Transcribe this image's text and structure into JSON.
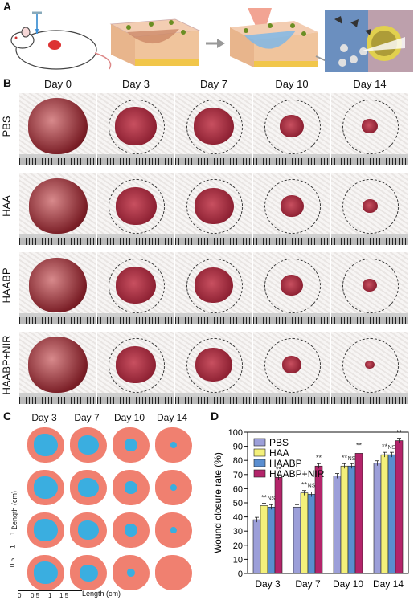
{
  "panels": {
    "a": "A",
    "b": "B",
    "c": "C",
    "d": "D"
  },
  "days": [
    "Day 0",
    "Day 3",
    "Day 7",
    "Day 10",
    "Day 14"
  ],
  "groups": [
    "PBS",
    "HAA",
    "HAABP",
    "HAABP+NIR"
  ],
  "trace_days": [
    "Day 3",
    "Day 7",
    "Day 10",
    "Day 14"
  ],
  "scale_length_label": "Length (cm)",
  "scale_ticks": [
    "0",
    "0.5",
    "1",
    "1.5"
  ],
  "colors": {
    "skin_area": "#f08070",
    "wound_area": "#3aaee0",
    "pbs": "#9c9fd9",
    "haa": "#f3f07a",
    "haabp": "#5a8ed0",
    "haabp_nir": "#b3246a"
  },
  "chart_data": {
    "type": "bar",
    "title": "",
    "xlabel": "",
    "ylabel": "Wound closure rate (%)",
    "ylim": [
      0,
      100
    ],
    "yticks": [
      0,
      10,
      20,
      30,
      40,
      50,
      60,
      70,
      80,
      90,
      100
    ],
    "categories": [
      "Day 3",
      "Day 7",
      "Day 10",
      "Day 14"
    ],
    "series": [
      {
        "name": "PBS",
        "values": [
          38,
          47,
          69,
          78
        ],
        "color": "#9c9fd9"
      },
      {
        "name": "HAA",
        "values": [
          48,
          57,
          76,
          84
        ],
        "color": "#f3f07a"
      },
      {
        "name": "HAABP",
        "values": [
          47,
          56,
          76,
          84
        ],
        "color": "#5a8ed0"
      },
      {
        "name": "HAABP+NIR",
        "values": [
          68,
          76,
          85,
          94
        ],
        "color": "#b3246a"
      }
    ],
    "annotations": [
      "**",
      "NS",
      "**"
    ],
    "legend_position": "top-left"
  }
}
